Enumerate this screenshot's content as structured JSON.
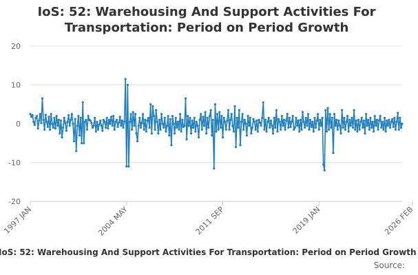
{
  "title_line1": "IoS: 52: Warehousing And Support Activities For",
  "title_line2": "Transportation: Period on Period Growth",
  "footer_title": "IoS: 52: Warehousing And Support Activities For Transportation: Period on Period Growth",
  "source_label": "Source:",
  "colors": {
    "line": "#1f7fc0",
    "grid": "#e6e6e6",
    "axis": "#cccccc",
    "text": "#333333",
    "muted": "#666666"
  },
  "chart_data": {
    "type": "line",
    "title": "IoS: 52: Warehousing And Support Activities For Transportation: Period on Period Growth",
    "xlabel": "",
    "ylabel": "",
    "ylim": [
      -20,
      20
    ],
    "yticks": [
      20,
      10,
      0,
      -10,
      -20
    ],
    "xticks": [
      {
        "label": "1997 JAN",
        "t": 0
      },
      {
        "label": "2004 MAY",
        "t": 88
      },
      {
        "label": "2011 SEP",
        "t": 176
      },
      {
        "label": "2019 JAN",
        "t": 264
      },
      {
        "label": "2026 FEB",
        "t": 349
      }
    ],
    "x_start": "1997 JAN",
    "x_end": "2026 FEB",
    "series": [
      {
        "name": "Period on Period Growth",
        "values": [
          2.5,
          1.8,
          2.2,
          0.5,
          -0.3,
          1.5,
          2.0,
          -1.2,
          0.8,
          2.5,
          0.2,
          6.5,
          1.0,
          -1.5,
          2.3,
          0.5,
          -0.8,
          1.8,
          -1.5,
          2.5,
          0.0,
          -1.0,
          1.5,
          -1.2,
          2.0,
          -0.5,
          1.0,
          -2.5,
          0.8,
          -3.5,
          -1.0,
          1.5,
          0.2,
          -1.8,
          0.5,
          2.2,
          -0.5,
          1.0,
          2.5,
          0.0,
          -4.5,
          1.2,
          -7.0,
          -0.5,
          2.0,
          -3.0,
          1.5,
          -5.0,
          5.5,
          -5.0,
          0.5,
          1.0,
          -1.5,
          2.0,
          1.0,
          0.8,
          0.2,
          -1.0,
          -0.5,
          1.5,
          -2.0,
          0.5,
          -1.5,
          -0.2,
          0.8,
          -0.5,
          -1.8,
          1.0,
          0.5,
          -1.0,
          1.5,
          -1.2,
          1.0,
          0.0,
          1.8,
          -0.5,
          2.0,
          -1.5,
          0.5,
          1.0,
          -0.8,
          0.3,
          1.8,
          -0.5,
          0.8,
          -1.0,
          0.5,
          11.5,
          -11.0,
          10.0,
          -11.0,
          0.5,
          2.5,
          -1.5,
          3.0,
          -0.5,
          2.5,
          -2.5,
          -4.5,
          -0.5,
          1.5,
          -1.0,
          0.2,
          2.5,
          -1.5,
          1.0,
          -2.0,
          0.8,
          1.5,
          -1.0,
          5.0,
          -2.5,
          4.5,
          2.0,
          -1.5,
          3.5,
          0.5,
          -2.5,
          1.0,
          -1.5,
          2.5,
          0.0,
          -1.0,
          1.5,
          -2.0,
          -0.5,
          2.0,
          -3.0,
          1.2,
          -5.5,
          2.0,
          0.0,
          -2.5,
          1.5,
          -1.0,
          0.5,
          -1.5,
          2.5,
          -2.0,
          1.0,
          -0.8,
          -0.5,
          6.5,
          -4.0,
          2.0,
          -0.5,
          1.5,
          -2.5,
          0.8,
          -1.0,
          1.5,
          -2.0,
          0.5,
          -0.5,
          -3.5,
          1.0,
          2.5,
          -1.5,
          1.8,
          -0.5,
          3.0,
          -2.5,
          1.5,
          -1.0,
          2.0,
          3.5,
          -3.0,
          1.0,
          -11.5,
          5.0,
          -2.0,
          2.5,
          -1.5,
          3.0,
          -1.0,
          2.0,
          -3.5,
          1.5,
          0.5,
          -1.5,
          0.8,
          3.5,
          -1.5,
          1.0,
          2.5,
          -0.5,
          -2.0,
          4.5,
          -6.0,
          1.5,
          -1.0,
          3.5,
          -5.5,
          0.5,
          2.5,
          -1.5,
          1.0,
          0.0,
          -3.0,
          2.0,
          -0.5,
          1.5,
          -2.5,
          -1.0,
          1.2,
          0.5,
          -1.5,
          0.8,
          -2.0,
          1.0,
          0.3,
          -0.5,
          1.5,
          5.5,
          -1.5,
          1.0,
          -2.0,
          0.5,
          1.5,
          -1.0,
          0.8,
          -0.5,
          -2.5,
          1.5,
          -1.0,
          3.5,
          -2.0,
          1.2,
          0.5,
          -1.5,
          2.0,
          -0.5,
          1.0,
          -1.5,
          0.8,
          2.5,
          -1.0,
          1.5,
          -0.8,
          0.5,
          2.0,
          -1.5,
          -1.0,
          1.5,
          -0.5,
          0.8,
          -2.0,
          1.0,
          -1.5,
          3.0,
          0.5,
          -1.0,
          1.5,
          -0.5,
          2.5,
          -1.5,
          1.0,
          -0.8,
          0.5,
          -2.0,
          1.5,
          -1.0,
          0.8,
          2.5,
          -1.5,
          1.0,
          -0.5,
          1.5,
          -10.5,
          -12.0,
          3.5,
          -2.0,
          4.0,
          -1.5,
          2.5,
          -1.0,
          1.5,
          -7.5,
          2.5,
          -0.5,
          1.0,
          -1.5,
          0.8,
          -0.5,
          -2.5,
          3.5,
          -1.0,
          1.5,
          -1.5,
          0.5,
          2.0,
          -2.0,
          1.0,
          -0.5,
          1.5,
          -1.0,
          3.5,
          -1.5,
          0.8,
          -2.0,
          1.0,
          -1.5,
          0.5,
          1.5,
          -1.0,
          0.8,
          -2.5,
          2.5,
          -0.5,
          1.0,
          -1.5,
          1.5,
          -1.0,
          0.5,
          -2.0,
          2.0,
          -0.5,
          1.0,
          -1.5,
          0.8,
          2.0,
          -1.0,
          0.5,
          -1.5,
          1.5,
          -2.0,
          0.8,
          -0.5,
          1.0,
          -1.0,
          0.5,
          1.2,
          -0.8,
          1.5,
          -1.5,
          0.5,
          2.8,
          -1.5,
          1.5,
          -1.0,
          0.0
        ]
      }
    ]
  }
}
